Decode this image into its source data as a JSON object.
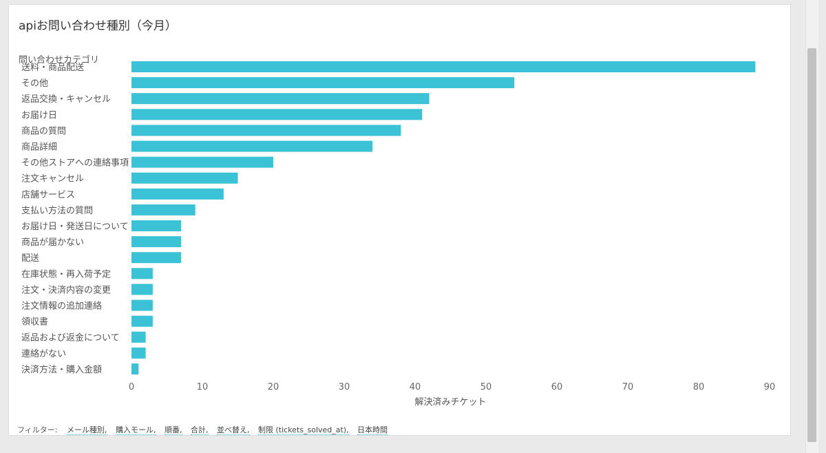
{
  "panel": {
    "title": "apiお問い合わせ種別（今月）"
  },
  "filters": {
    "label": "フィルター:",
    "items": [
      "メール種別,",
      "購入モール,",
      "順番,",
      "合計,",
      "並べ替え,",
      "制限 (tickets_solved_at),",
      "日本時間"
    ]
  },
  "chart_data": {
    "type": "bar",
    "orientation": "horizontal",
    "ylabel": "問い合わせカテゴリ",
    "xlabel": "解決済みチケット",
    "xlim": [
      0,
      90
    ],
    "xticks": [
      0,
      10,
      20,
      30,
      40,
      50,
      60,
      70,
      80,
      90
    ],
    "grid": false,
    "color": "#3bc2d6",
    "categories": [
      "送料・商品配送",
      "その他",
      "返品交換・キャンセル",
      "お届け日",
      "商品の質問",
      "商品詳細",
      "その他ストアへの連絡事項",
      "注文キャンセル",
      "店舗サービス",
      "支払い方法の質問",
      "お届け日・発送日について",
      "商品が届かない",
      "配送",
      "在庫状態・再入荷予定",
      "注文・決済内容の変更",
      "注文情報の追加連絡",
      "領収書",
      "返品および返金について",
      "連絡がない",
      "決済方法・購入金額"
    ],
    "values": [
      88,
      54,
      42,
      41,
      38,
      34,
      20,
      15,
      13,
      9,
      7,
      7,
      7,
      3,
      3,
      3,
      3,
      2,
      2,
      1
    ]
  }
}
